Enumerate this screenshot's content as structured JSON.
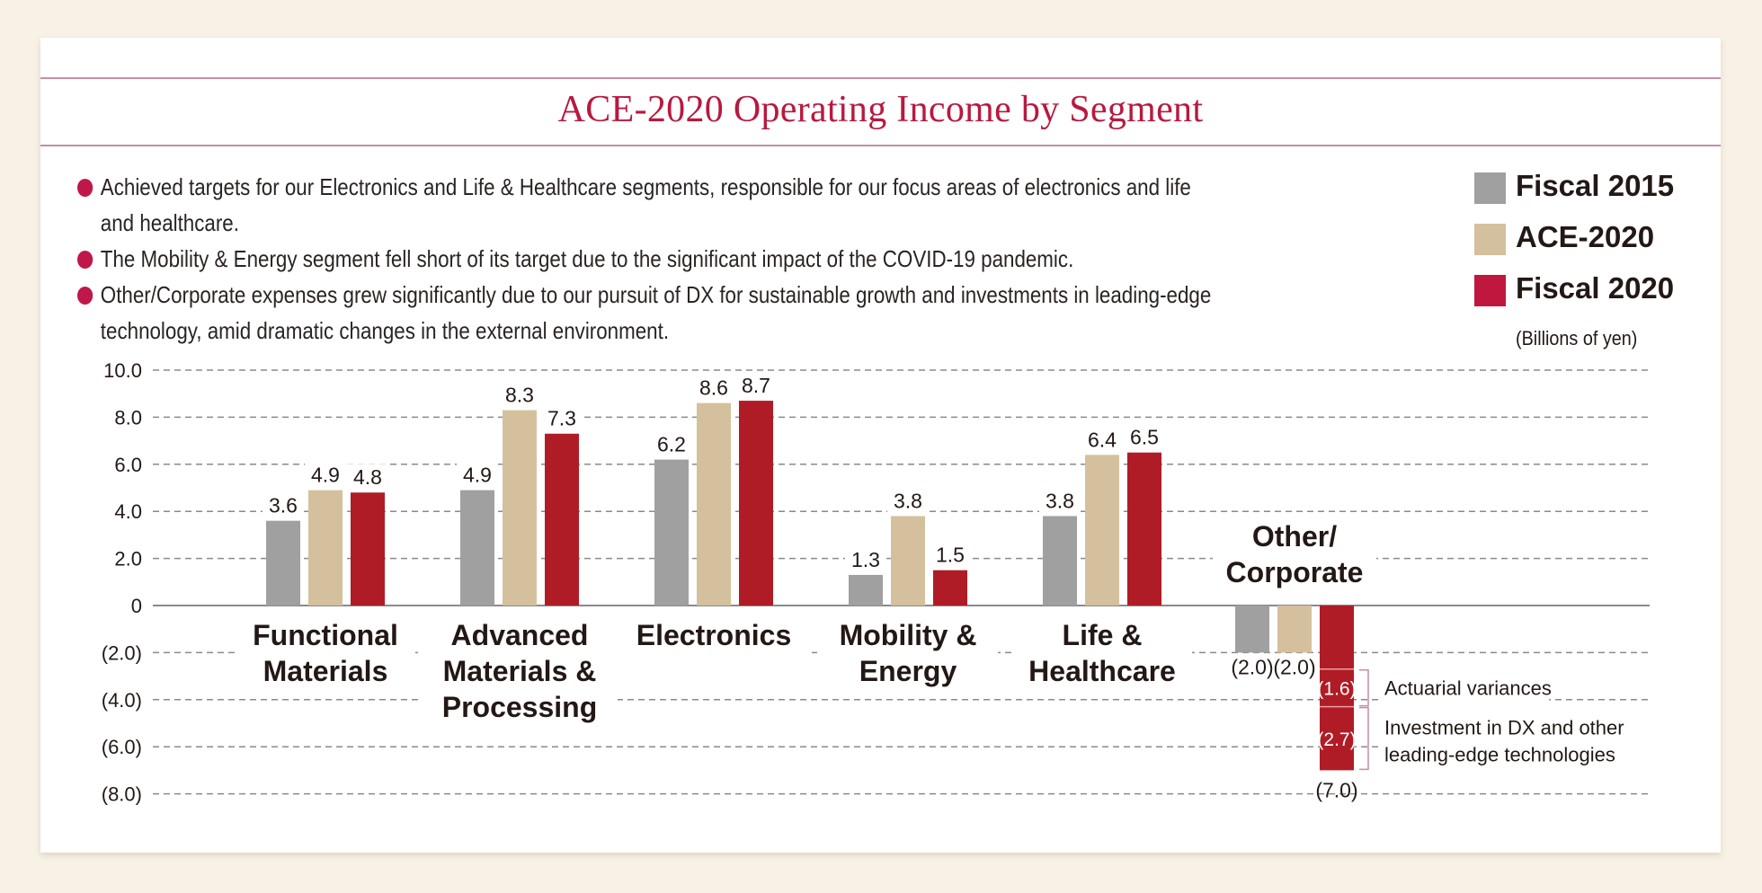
{
  "title": "ACE-2020 Operating Income by Segment",
  "bullets": [
    {
      "lines": [
        "Achieved targets for our Electronics and Life & Healthcare segments, responsible for our focus areas of electronics and life",
        "and healthcare."
      ]
    },
    {
      "lines": [
        "The Mobility & Energy segment fell short of its target due to the significant impact of the COVID-19 pandemic."
      ]
    },
    {
      "lines": [
        "Other/Corporate expenses grew significantly due to our pursuit of DX for sustainable growth and investments in leading-edge",
        "technology, amid dramatic changes in the external environment."
      ]
    }
  ],
  "legend": [
    {
      "label": "Fiscal 2015",
      "color": "#a0a0a0"
    },
    {
      "label": "ACE-2020",
      "color": "#d5c09d"
    },
    {
      "label": "Fiscal 2020",
      "color": "#c0173f"
    }
  ],
  "units": "(Billions of yen)",
  "colors": {
    "accent": "#c0174a",
    "title": "#b8193f",
    "bar_fiscal2015": "#a0a0a0",
    "bar_ace2020": "#d5c09d",
    "bar_fiscal2020": "#b01c26",
    "bracket": "#c48ea8"
  },
  "chart_data": {
    "type": "bar",
    "title": "ACE-2020 Operating Income by Segment",
    "xlabel": "",
    "ylabel": "Billions of yen",
    "ylim": [
      -8,
      10
    ],
    "yticks": [
      10,
      8,
      6,
      4,
      2,
      0,
      -2,
      -4,
      -6,
      -8
    ],
    "ytick_labels": [
      "10.0",
      "8.0",
      "6.0",
      "4.0",
      "2.0",
      "0",
      "(2.0)",
      "(4.0)",
      "(6.0)",
      "(8.0)"
    ],
    "grid": true,
    "legend_position": "top-right",
    "categories": [
      [
        "Functional",
        "Materials"
      ],
      [
        "Advanced",
        "Materials &",
        "Processing"
      ],
      [
        "Electronics"
      ],
      [
        "Mobility &",
        "Energy"
      ],
      [
        "Life &",
        "Healthcare"
      ],
      [
        "Other/",
        "Corporate"
      ]
    ],
    "series": [
      {
        "name": "Fiscal 2015",
        "values": [
          3.6,
          4.9,
          6.2,
          1.3,
          3.8,
          -2.0
        ],
        "labels": [
          "3.6",
          "4.9",
          "6.2",
          "1.3",
          "3.8",
          "(2.0)"
        ]
      },
      {
        "name": "ACE-2020",
        "values": [
          4.9,
          8.3,
          8.6,
          3.8,
          6.4,
          -2.0
        ],
        "labels": [
          "4.9",
          "8.3",
          "8.6",
          "3.8",
          "6.4",
          "(2.0)"
        ]
      },
      {
        "name": "Fiscal 2020",
        "values": [
          4.8,
          7.3,
          8.7,
          1.5,
          6.5,
          -7.0
        ],
        "labels": [
          "4.8",
          "7.3",
          "8.7",
          "1.5",
          "6.5",
          "(7.0)"
        ]
      }
    ],
    "breakdown": {
      "category_index": 5,
      "series": "Fiscal 2020",
      "segments": [
        {
          "value": -2.7,
          "label": ""
        },
        {
          "value": -1.6,
          "label": "(1.6)",
          "note": "Actuarial variances"
        },
        {
          "value": -2.7,
          "label": "(2.7)",
          "note_lines": [
            "Investment in DX and other",
            "leading-edge technologies"
          ]
        }
      ]
    }
  }
}
